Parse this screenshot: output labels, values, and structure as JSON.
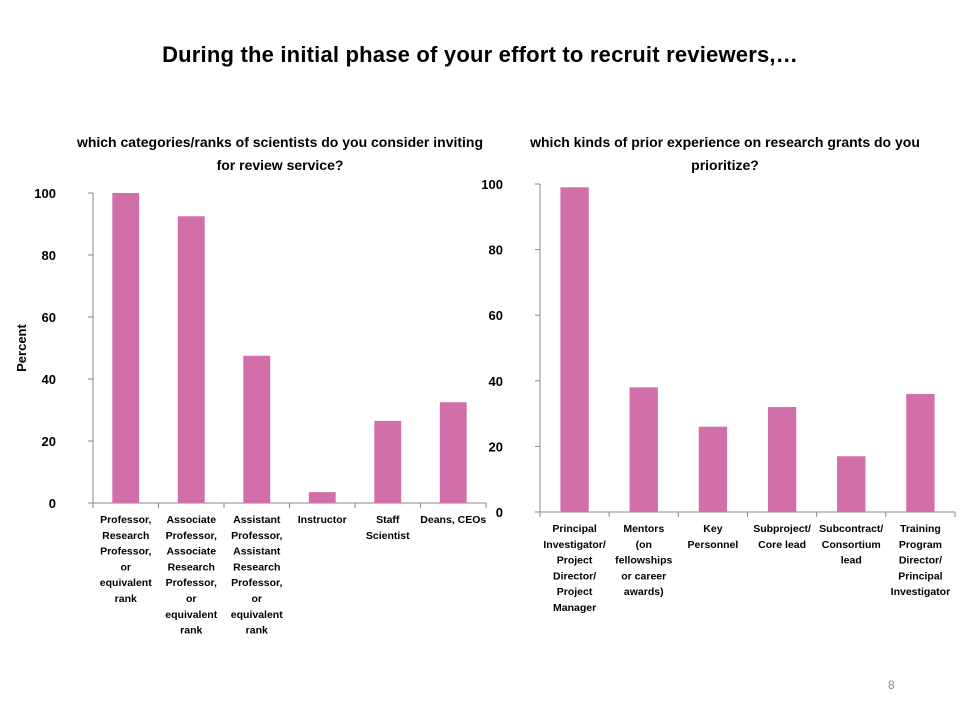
{
  "slide": {
    "title": "During the initial phase of your effort to recruit reviewers,…",
    "page_number": "8"
  },
  "colors": {
    "bar": "#D36FA8",
    "axis": "#888888"
  },
  "chart_data": [
    {
      "type": "bar",
      "title": "which categories/ranks of scientists do you consider inviting for review service?",
      "ylabel": "Percent",
      "xlabel": "",
      "ylim": [
        0,
        100
      ],
      "yticks": [
        0,
        20,
        40,
        60,
        80,
        100
      ],
      "grid": false,
      "categories": [
        "Professor, Research Professor, or equivalent rank",
        "Associate Professor, Associate Research Professor, or equivalent rank",
        "Assistant Professor, Assistant Research Professor, or equivalent rank",
        "Instructor",
        "Staff Scientist",
        "Deans, CEOs"
      ],
      "category_lines": [
        [
          "Professor,",
          "Research",
          "Professor,",
          "or",
          "equivalent",
          "rank"
        ],
        [
          "Associate",
          "Professor,",
          "Associate",
          "Research",
          "Professor,",
          "or",
          "equivalent",
          "rank"
        ],
        [
          "Assistant",
          "Professor,",
          "Assistant",
          "Research",
          "Professor,",
          "or",
          "equivalent",
          "rank"
        ],
        [
          "Instructor"
        ],
        [
          "Staff",
          "Scientist"
        ],
        [
          "Deans, CEOs"
        ]
      ],
      "values": [
        100,
        92.5,
        47.5,
        3.5,
        26.5,
        32.5
      ]
    },
    {
      "type": "bar",
      "title": "which kinds of prior experience on research grants do you prioritize?",
      "ylabel": "",
      "xlabel": "",
      "ylim": [
        0,
        100
      ],
      "yticks": [
        0,
        20,
        40,
        60,
        80,
        100
      ],
      "grid": false,
      "categories": [
        "Principal Investigator/ Project Director/ Project Manager",
        "Mentors (on fellowships or career awards)",
        "Key Personnel",
        "Subproject/ Core lead",
        "Subcontract/ Consortium lead",
        "Training Program Director/ Principal Investigator"
      ],
      "category_lines": [
        [
          "Principal",
          "Investigator/",
          "Project",
          "Director/",
          "Project",
          "Manager"
        ],
        [
          "Mentors",
          "(on",
          "fellowships",
          "or career",
          "awards)"
        ],
        [
          "Key",
          "Personnel"
        ],
        [
          "Subproject/",
          "Core lead"
        ],
        [
          "Subcontract/",
          "Consortium",
          "lead"
        ],
        [
          "Training",
          "Program",
          "Director/",
          "Principal",
          "Investigator"
        ]
      ],
      "values": [
        99,
        38,
        26,
        32,
        17,
        36
      ]
    }
  ]
}
